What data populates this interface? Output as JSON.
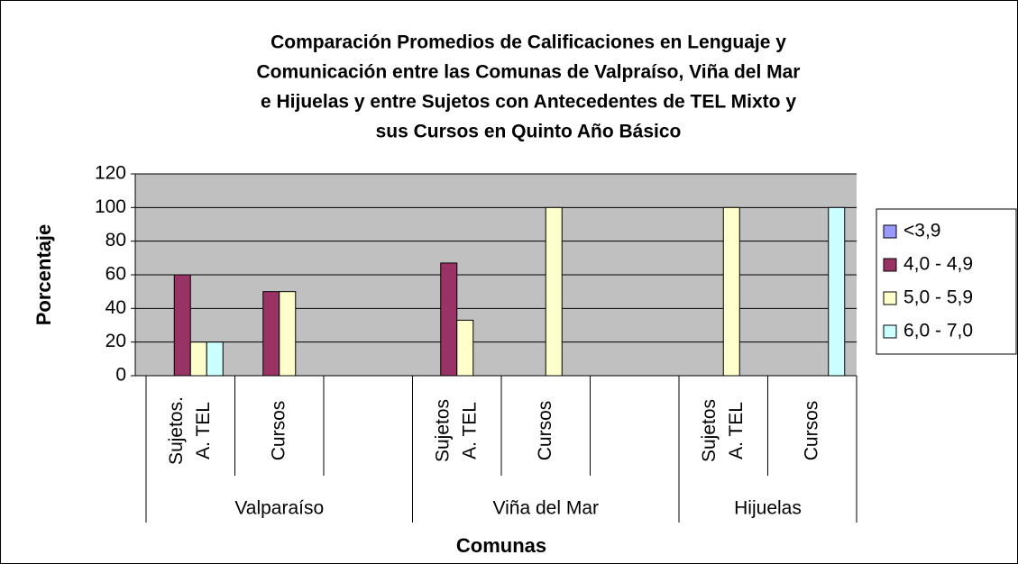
{
  "chart_data": {
    "type": "bar",
    "title": [
      "Comparación Promedios de Calificaciones en Lenguaje y",
      "Comunicación entre las Comunas de Valpraíso, Viña del Mar",
      "e Hijuelas y entre Sujetos con Antecedentes de TEL Mixto y",
      "sus Cursos en Quinto Año Básico"
    ],
    "y_label": "Porcentaje",
    "x_label": "Comunas",
    "groups": [
      {
        "name": "Valparaíso",
        "categories": [
          [
            "Sujetos.",
            "A. TEL"
          ],
          [
            "Cursos"
          ],
          null
        ]
      },
      {
        "name": "Viña del Mar",
        "categories": [
          [
            "Sujetos",
            "A. TEL"
          ],
          [
            "Cursos"
          ],
          null
        ]
      },
      {
        "name": "Hijuelas",
        "categories": [
          [
            "Sujetos",
            "A. TEL"
          ],
          [
            "Cursos"
          ]
        ]
      }
    ],
    "series": [
      {
        "name": "<3,9",
        "color": "#9999ff",
        "values": [
          0,
          0,
          null,
          0,
          0,
          null,
          0,
          0
        ]
      },
      {
        "name": "4,0 - 4,9",
        "color": "#993366",
        "values": [
          60,
          50,
          null,
          67,
          0,
          null,
          0,
          0
        ]
      },
      {
        "name": "5,0 - 5,9",
        "color": "#ffffcc",
        "values": [
          20,
          50,
          null,
          33,
          100,
          null,
          100,
          0
        ]
      },
      {
        "name": "6,0 - 7,0",
        "color": "#ccffff",
        "values": [
          20,
          0,
          null,
          0,
          0,
          null,
          0,
          100
        ]
      }
    ],
    "ylim": [
      0,
      120
    ],
    "yticks": [
      0,
      20,
      40,
      60,
      80,
      100,
      120
    ],
    "grid": true,
    "legend": "right"
  }
}
